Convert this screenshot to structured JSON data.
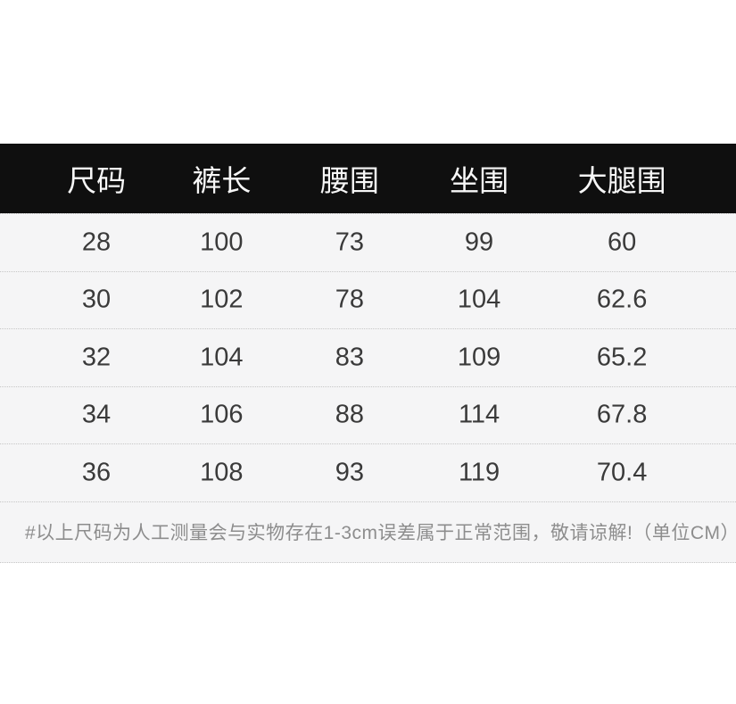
{
  "theme": {
    "page_bg": "#ffffff",
    "panel_bg": "#f5f5f6",
    "header_bg": "#0f0f0f",
    "header_text": "#f7f7f7",
    "body_text": "#3a3a3a",
    "footnote_text": "#8d8d8d",
    "divider": "#c6c6c6"
  },
  "chart_data": {
    "type": "table",
    "columns": [
      "尺码",
      "裤长",
      "腰围",
      "坐围",
      "大腿围"
    ],
    "rows": [
      [
        "28",
        "100",
        "73",
        "99",
        "60"
      ],
      [
        "30",
        "102",
        "78",
        "104",
        "62.6"
      ],
      [
        "32",
        "104",
        "83",
        "109",
        "65.2"
      ],
      [
        "34",
        "106",
        "88",
        "114",
        "67.8"
      ],
      [
        "36",
        "108",
        "93",
        "119",
        "70.4"
      ]
    ],
    "unit": "CM",
    "footnote": "#以上尺码为人工测量会与实物存在1-3cm误差属于正常范围，敬请谅解!（单位CM）"
  }
}
